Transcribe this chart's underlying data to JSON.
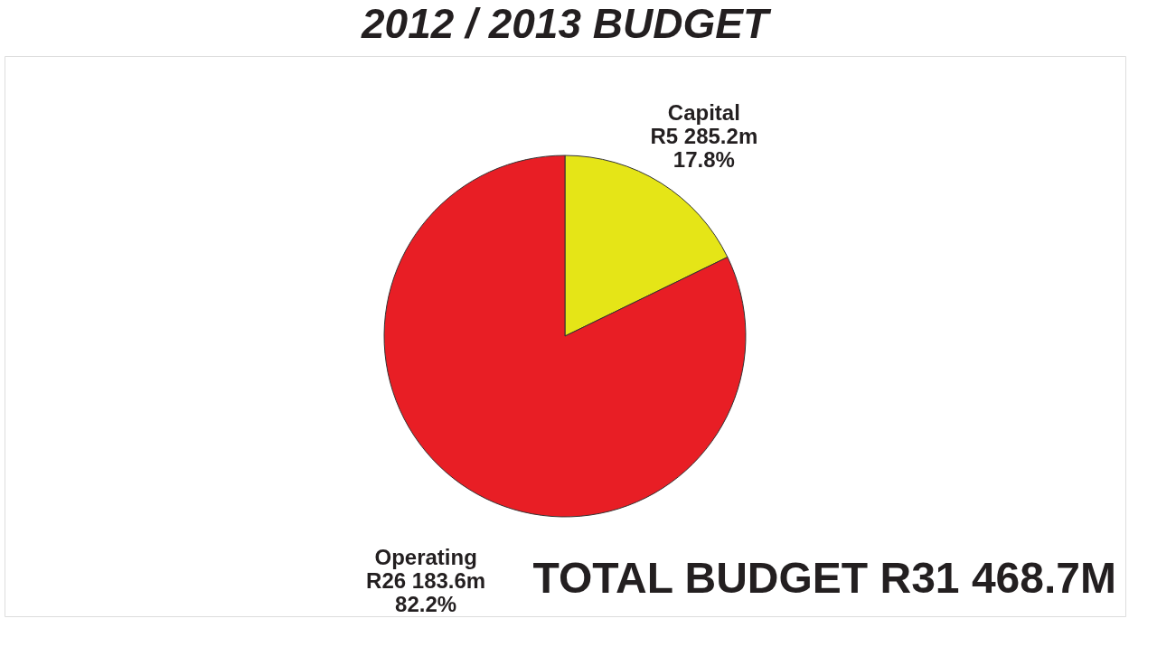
{
  "chart_data": {
    "type": "pie",
    "title": "2012 / 2013 BUDGET",
    "categories": [
      "Capital",
      "Operating"
    ],
    "values": [
      17.8,
      82.2
    ],
    "colors": [
      "#e5e517",
      "#e81e25"
    ],
    "value_labels": [
      "R5 285.2m\n17.8%",
      "R26 183.6m\n82.2%"
    ],
    "annotations": [
      "TOTAL BUDGET R31 468.7M"
    ],
    "legend": false
  }
}
